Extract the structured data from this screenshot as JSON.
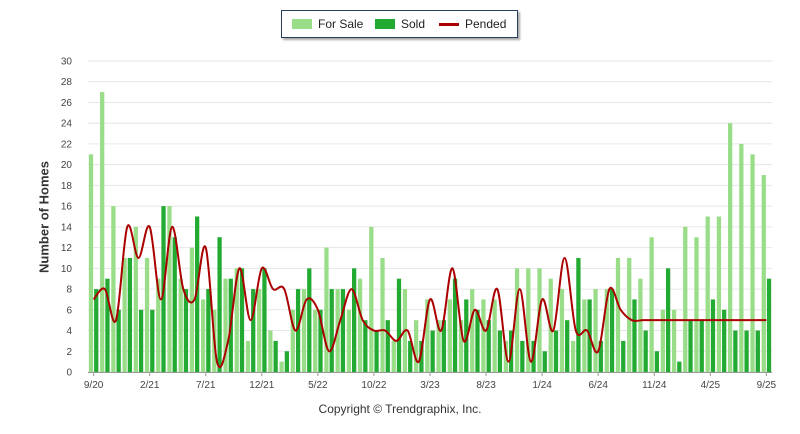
{
  "legend": {
    "for_sale": "For Sale",
    "sold": "Sold",
    "pended": "Pended"
  },
  "copyright": "Copyright © Trendgraphix, Inc.",
  "colors": {
    "for_sale": "#99dd88",
    "sold": "#22aa33",
    "pended": "#aa0000",
    "grid": "#e6e6e6",
    "axis": "#999999"
  },
  "chart_data": {
    "type": "bar",
    "ylabel": "Number of Homes",
    "ylim": [
      0,
      30
    ],
    "yticks": [
      0,
      2,
      4,
      6,
      8,
      10,
      12,
      14,
      16,
      18,
      20,
      22,
      24,
      26,
      28,
      30
    ],
    "xtick_labels": [
      {
        "index": 0,
        "label": "9/20"
      },
      {
        "index": 5,
        "label": "2/21"
      },
      {
        "index": 10,
        "label": "7/21"
      },
      {
        "index": 15,
        "label": "12/21"
      },
      {
        "index": 20,
        "label": "5/22"
      },
      {
        "index": 25,
        "label": "10/22"
      },
      {
        "index": 30,
        "label": "3/23"
      },
      {
        "index": 35,
        "label": "8/23"
      },
      {
        "index": 40,
        "label": "1/24"
      },
      {
        "index": 45,
        "label": "6/24"
      },
      {
        "index": 50,
        "label": "11/24"
      },
      {
        "index": 55,
        "label": "4/25"
      },
      {
        "index": 60,
        "label": "9/25"
      }
    ],
    "series": [
      {
        "name": "For Sale",
        "type": "bar",
        "values": [
          21,
          27,
          16,
          11,
          14,
          11,
          9,
          16,
          9,
          12,
          7,
          6,
          9,
          10,
          3,
          8,
          4,
          1,
          6,
          8,
          6,
          12,
          8,
          6,
          9,
          14,
          11,
          3,
          8,
          5,
          7,
          5,
          7,
          5,
          8,
          7,
          7,
          3,
          10,
          10,
          10,
          9,
          8,
          3,
          7,
          8,
          8,
          11,
          11,
          9,
          13,
          6,
          6,
          14,
          13,
          15,
          15,
          24,
          22,
          21,
          19
        ]
      },
      {
        "name": "Sold",
        "type": "bar",
        "values": [
          8,
          9,
          6,
          11,
          6,
          6,
          16,
          13,
          8,
          15,
          8,
          13,
          9,
          10,
          8,
          10,
          3,
          2,
          8,
          10,
          6,
          8,
          8,
          10,
          5,
          4,
          5,
          9,
          3,
          3,
          4,
          5,
          9,
          7,
          6,
          5,
          4,
          4,
          3,
          3,
          2,
          4,
          5,
          11,
          7,
          3,
          8,
          3,
          7,
          4,
          2,
          10,
          1,
          5,
          5,
          7,
          6,
          4,
          4,
          4,
          9
        ]
      },
      {
        "name": "Pended",
        "type": "line",
        "values": [
          7,
          8,
          5,
          14,
          11,
          14,
          7,
          14,
          8,
          7,
          12,
          1,
          3,
          10,
          5,
          10,
          8,
          8,
          4,
          7,
          6,
          2,
          5,
          8,
          5,
          4,
          4,
          3,
          4,
          1,
          7,
          4,
          10,
          3,
          6,
          4,
          8,
          1,
          8,
          1,
          7,
          4,
          11,
          4,
          4,
          2,
          8,
          6,
          5,
          5,
          5,
          5,
          5,
          5,
          5,
          5,
          5,
          5,
          5,
          5,
          5
        ]
      }
    ]
  }
}
